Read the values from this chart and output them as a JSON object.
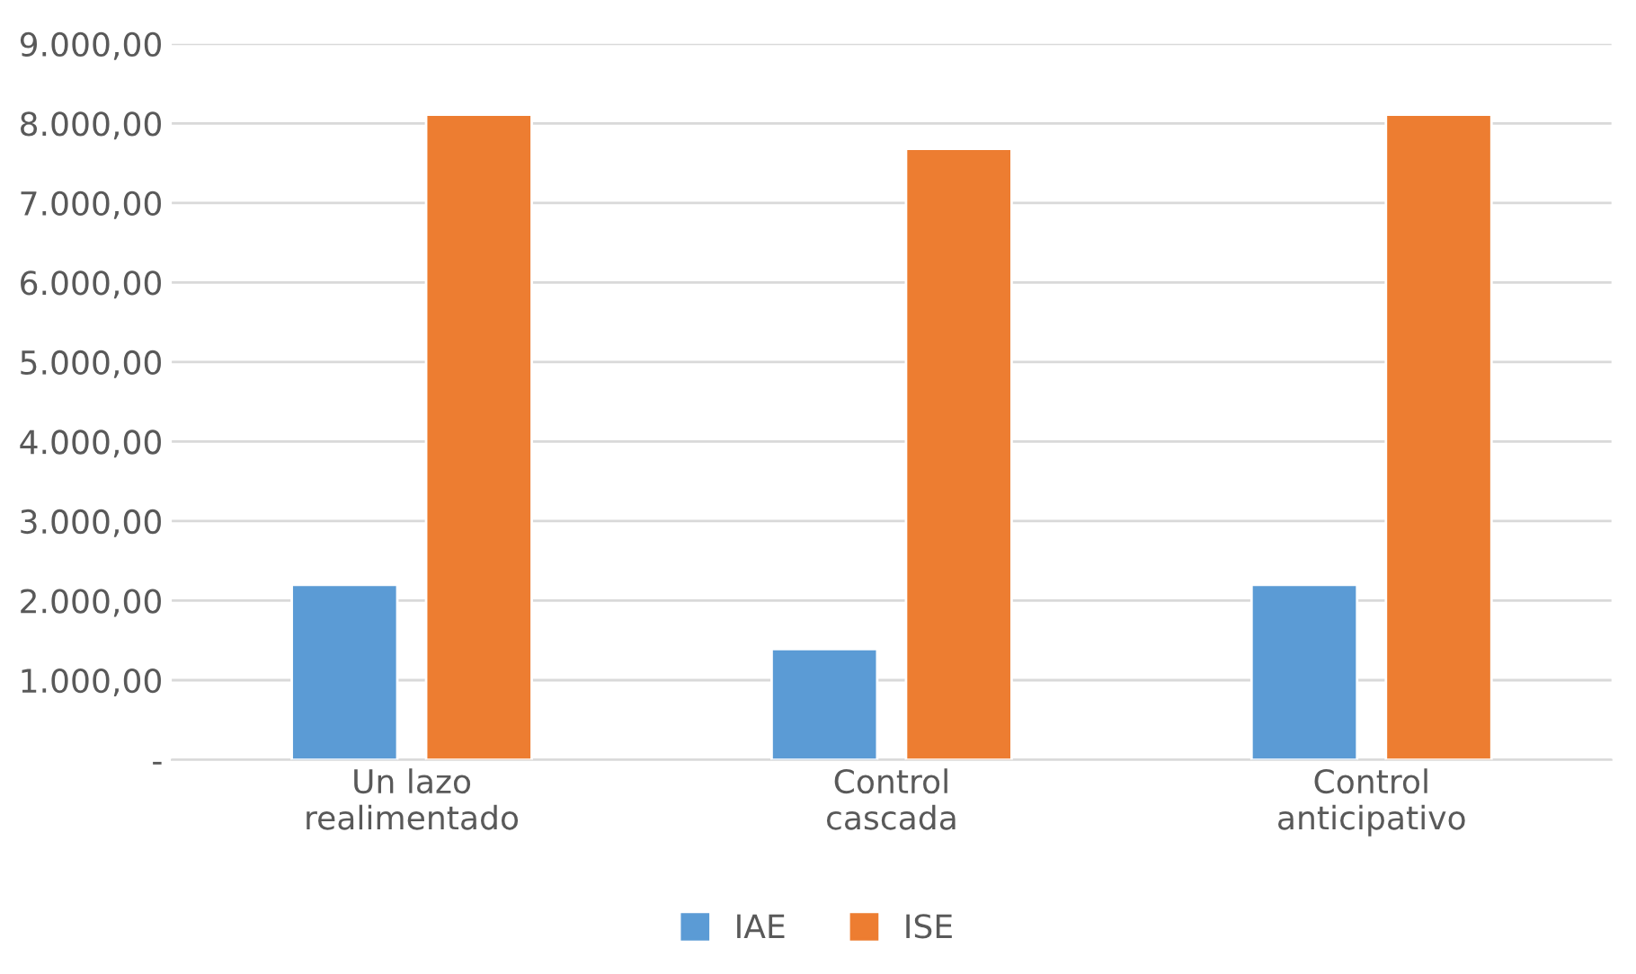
{
  "chart_data": {
    "type": "bar",
    "categories": [
      "Un lazo\nrealimentado",
      "Control\ncascada",
      "Control\nanticipativo"
    ],
    "series": [
      {
        "name": "IAE",
        "color": "#5b9bd5",
        "values": [
          2200,
          1390,
          2200
        ]
      },
      {
        "name": "ISE",
        "color": "#ed7d31",
        "values": [
          8110,
          7680,
          8110
        ]
      }
    ],
    "ylim": [
      0,
      9000
    ],
    "yticks": [
      {
        "value": 0,
        "label": "-"
      },
      {
        "value": 1000,
        "label": "1.000,00"
      },
      {
        "value": 2000,
        "label": "2.000,00"
      },
      {
        "value": 3000,
        "label": "3.000,00"
      },
      {
        "value": 4000,
        "label": "4.000,00"
      },
      {
        "value": 5000,
        "label": "5.000,00"
      },
      {
        "value": 6000,
        "label": "6.000,00"
      },
      {
        "value": 7000,
        "label": "7.000,00"
      },
      {
        "value": 8000,
        "label": "8.000,00"
      },
      {
        "value": 9000,
        "label": "9.000,00"
      }
    ],
    "grid": "y",
    "legend": "bottom"
  }
}
